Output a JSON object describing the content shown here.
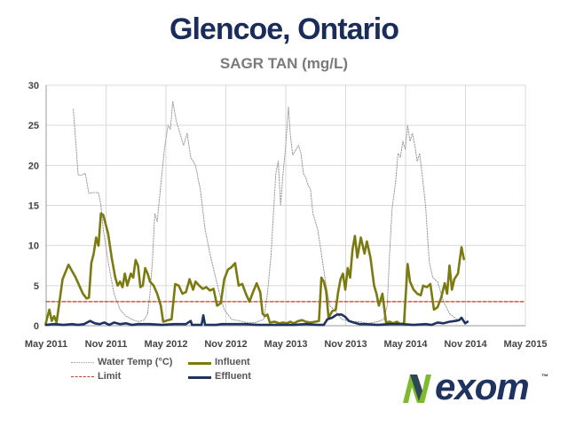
{
  "header": {
    "title": "Glencoe, Ontario",
    "subtitle": "SAGR TAN (mg/L)"
  },
  "colors": {
    "title": "#1a2d5a",
    "subtitle": "#7a7a7a",
    "water_temp": "#9a9a9a",
    "influent": "#7b7a10",
    "limit": "#c0392b",
    "effluent": "#1f3360",
    "grid": "#d9d9d9",
    "logo_green": "#7dbb2a",
    "logo_navy": "#1f3360"
  },
  "logo": {
    "text": "exom",
    "mark": "N",
    "tm": "™"
  },
  "chart_data": {
    "type": "line",
    "title": "",
    "xlabel": "",
    "ylabel": "",
    "ylim": [
      0,
      30
    ],
    "xlim": [
      2011.333,
      2015.333
    ],
    "grid": true,
    "legend_position": "bottom-center",
    "y_ticks": [
      0,
      5,
      10,
      15,
      20,
      25,
      30
    ],
    "x_ticks": [
      {
        "label": "May 2011",
        "x": 2011.333
      },
      {
        "label": "Nov 2011",
        "x": 2011.833
      },
      {
        "label": "May 2012",
        "x": 2012.333
      },
      {
        "label": "Nov 2012",
        "x": 2012.833
      },
      {
        "label": "May 2013",
        "x": 2013.333
      },
      {
        "label": "Nov 2013",
        "x": 2013.833
      },
      {
        "label": "May 2014",
        "x": 2014.333
      },
      {
        "label": "Nov 2014",
        "x": 2014.833
      },
      {
        "label": "May 2015",
        "x": 2015.333
      }
    ],
    "series": [
      {
        "name": "Water Temp (°C)",
        "style": "dotted",
        "points": [
          [
            2011.56,
            27
          ],
          [
            2011.58,
            23
          ],
          [
            2011.6,
            18.8
          ],
          [
            2011.63,
            18.8
          ],
          [
            2011.66,
            19
          ],
          [
            2011.69,
            16.5
          ],
          [
            2011.72,
            16.6
          ],
          [
            2011.77,
            16.6
          ],
          [
            2011.79,
            15
          ],
          [
            2011.81,
            12
          ],
          [
            2011.85,
            8
          ],
          [
            2011.9,
            4
          ],
          [
            2011.95,
            2
          ],
          [
            2012.0,
            1.2
          ],
          [
            2012.05,
            0.8
          ],
          [
            2012.1,
            0.5
          ],
          [
            2012.15,
            0.7
          ],
          [
            2012.18,
            1.5
          ],
          [
            2012.2,
            4
          ],
          [
            2012.22,
            8
          ],
          [
            2012.24,
            14
          ],
          [
            2012.26,
            13
          ],
          [
            2012.28,
            16
          ],
          [
            2012.3,
            19
          ],
          [
            2012.32,
            22
          ],
          [
            2012.35,
            25
          ],
          [
            2012.37,
            24.5
          ],
          [
            2012.39,
            28
          ],
          [
            2012.42,
            25.5
          ],
          [
            2012.45,
            24
          ],
          [
            2012.48,
            22.5
          ],
          [
            2012.51,
            24
          ],
          [
            2012.54,
            21
          ],
          [
            2012.58,
            20
          ],
          [
            2012.62,
            17
          ],
          [
            2012.66,
            12
          ],
          [
            2012.7,
            9
          ],
          [
            2012.74,
            6.5
          ],
          [
            2012.78,
            4
          ],
          [
            2012.82,
            2
          ],
          [
            2012.88,
            0.8
          ],
          [
            2012.95,
            0.6
          ],
          [
            2013.0,
            0.4
          ],
          [
            2013.08,
            0.4
          ],
          [
            2013.15,
            0.8
          ],
          [
            2013.18,
            4
          ],
          [
            2013.21,
            8.8
          ],
          [
            2013.23,
            14
          ],
          [
            2013.25,
            19
          ],
          [
            2013.27,
            20.5
          ],
          [
            2013.29,
            15
          ],
          [
            2013.31,
            19
          ],
          [
            2013.33,
            22
          ],
          [
            2013.355,
            27.3
          ],
          [
            2013.37,
            24
          ],
          [
            2013.39,
            21.3
          ],
          [
            2013.42,
            22
          ],
          [
            2013.44,
            22.5
          ],
          [
            2013.46,
            21.5
          ],
          [
            2013.48,
            19
          ],
          [
            2013.5,
            18.5
          ],
          [
            2013.52,
            17.5
          ],
          [
            2013.54,
            17
          ],
          [
            2013.56,
            14
          ],
          [
            2013.6,
            12
          ],
          [
            2013.63,
            9
          ],
          [
            2013.66,
            6
          ],
          [
            2013.7,
            2.5
          ],
          [
            2013.75,
            1.8
          ],
          [
            2013.8,
            0.8
          ],
          [
            2013.88,
            0.5
          ],
          [
            2013.95,
            0.5
          ],
          [
            2014.02,
            0.3
          ],
          [
            2014.1,
            0.5
          ],
          [
            2014.15,
            0.8
          ],
          [
            2014.18,
            2.5
          ],
          [
            2014.2,
            9
          ],
          [
            2014.22,
            14.5
          ],
          [
            2014.25,
            18
          ],
          [
            2014.27,
            21.5
          ],
          [
            2014.29,
            21
          ],
          [
            2014.31,
            23
          ],
          [
            2014.33,
            22
          ],
          [
            2014.35,
            25
          ],
          [
            2014.37,
            23
          ],
          [
            2014.39,
            24
          ],
          [
            2014.41,
            22.5
          ],
          [
            2014.43,
            20.5
          ],
          [
            2014.45,
            21.5
          ],
          [
            2014.47,
            19
          ],
          [
            2014.5,
            15
          ],
          [
            2014.53,
            8
          ],
          [
            2014.56,
            6
          ],
          [
            2014.6,
            5.5
          ],
          [
            2014.65,
            3
          ],
          [
            2014.7,
            1.5
          ],
          [
            2014.76,
            0.8
          ]
        ]
      },
      {
        "name": "Influent",
        "style": "solid",
        "points": [
          [
            2011.33,
            0.3
          ],
          [
            2011.36,
            2
          ],
          [
            2011.38,
            0.6
          ],
          [
            2011.4,
            1.2
          ],
          [
            2011.42,
            0.4
          ],
          [
            2011.44,
            2.5
          ],
          [
            2011.47,
            5.8
          ],
          [
            2011.52,
            7.6
          ],
          [
            2011.58,
            6
          ],
          [
            2011.64,
            4
          ],
          [
            2011.67,
            3.4
          ],
          [
            2011.69,
            3.5
          ],
          [
            2011.71,
            7.8
          ],
          [
            2011.73,
            9
          ],
          [
            2011.75,
            11
          ],
          [
            2011.77,
            10
          ],
          [
            2011.79,
            14
          ],
          [
            2011.81,
            13.8
          ],
          [
            2011.85,
            11.5
          ],
          [
            2011.88,
            8.5
          ],
          [
            2011.91,
            6
          ],
          [
            2011.93,
            5
          ],
          [
            2011.95,
            5.5
          ],
          [
            2011.97,
            4.8
          ],
          [
            2011.99,
            6.5
          ],
          [
            2012.01,
            5
          ],
          [
            2012.04,
            6.5
          ],
          [
            2012.06,
            6
          ],
          [
            2012.08,
            8.2
          ],
          [
            2012.1,
            7.5
          ],
          [
            2012.12,
            4.8
          ],
          [
            2012.14,
            5
          ],
          [
            2012.16,
            7.2
          ],
          [
            2012.18,
            6.5
          ],
          [
            2012.2,
            5.5
          ],
          [
            2012.23,
            5
          ],
          [
            2012.26,
            4
          ],
          [
            2012.29,
            2.5
          ],
          [
            2012.31,
            0.5
          ],
          [
            2012.35,
            0.7
          ],
          [
            2012.38,
            0.8
          ],
          [
            2012.41,
            5.2
          ],
          [
            2012.44,
            5
          ],
          [
            2012.47,
            4
          ],
          [
            2012.5,
            4.2
          ],
          [
            2012.53,
            5.8
          ],
          [
            2012.56,
            4.5
          ],
          [
            2012.58,
            5.5
          ],
          [
            2012.61,
            5
          ],
          [
            2012.64,
            4.6
          ],
          [
            2012.67,
            4.8
          ],
          [
            2012.7,
            4.4
          ],
          [
            2012.73,
            4.6
          ],
          [
            2012.76,
            2.5
          ],
          [
            2012.79,
            2.8
          ],
          [
            2012.82,
            5.8
          ],
          [
            2012.85,
            7
          ],
          [
            2012.88,
            7.3
          ],
          [
            2012.91,
            7.8
          ],
          [
            2012.94,
            5
          ],
          [
            2012.97,
            5.2
          ],
          [
            2013.0,
            4
          ],
          [
            2013.03,
            3
          ],
          [
            2013.06,
            4.2
          ],
          [
            2013.09,
            5.3
          ],
          [
            2013.12,
            4.2
          ],
          [
            2013.14,
            1.5
          ],
          [
            2013.16,
            1.2
          ],
          [
            2013.18,
            1.4
          ],
          [
            2013.2,
            0.4
          ],
          [
            2013.24,
            0.5
          ],
          [
            2013.28,
            0.3
          ],
          [
            2013.31,
            0.4
          ],
          [
            2013.34,
            0.3
          ],
          [
            2013.37,
            0.5
          ],
          [
            2013.4,
            0.3
          ],
          [
            2013.44,
            0.6
          ],
          [
            2013.47,
            0.7
          ],
          [
            2013.5,
            0.5
          ],
          [
            2013.54,
            0.4
          ],
          [
            2013.58,
            0.5
          ],
          [
            2013.61,
            0.6
          ],
          [
            2013.63,
            6
          ],
          [
            2013.65,
            5.5
          ],
          [
            2013.67,
            4.3
          ],
          [
            2013.69,
            1
          ],
          [
            2013.72,
            1.8
          ],
          [
            2013.75,
            2
          ],
          [
            2013.77,
            4.2
          ],
          [
            2013.79,
            5.8
          ],
          [
            2013.81,
            6.5
          ],
          [
            2013.83,
            4.5
          ],
          [
            2013.85,
            7.2
          ],
          [
            2013.87,
            6
          ],
          [
            2013.89,
            9.5
          ],
          [
            2013.91,
            11.2
          ],
          [
            2013.93,
            8.5
          ],
          [
            2013.96,
            11
          ],
          [
            2013.99,
            9
          ],
          [
            2014.01,
            10.5
          ],
          [
            2014.04,
            8.5
          ],
          [
            2014.07,
            5
          ],
          [
            2014.09,
            4
          ],
          [
            2014.11,
            2.5
          ],
          [
            2014.14,
            4
          ],
          [
            2014.17,
            0.4
          ],
          [
            2014.2,
            0.5
          ],
          [
            2014.23,
            0.3
          ],
          [
            2014.26,
            0.5
          ],
          [
            2014.29,
            0.2
          ],
          [
            2014.32,
            0.3
          ],
          [
            2014.35,
            7.7
          ],
          [
            2014.37,
            5.5
          ],
          [
            2014.4,
            4.5
          ],
          [
            2014.43,
            4
          ],
          [
            2014.46,
            3.8
          ],
          [
            2014.48,
            5
          ],
          [
            2014.51,
            4.8
          ],
          [
            2014.54,
            5.2
          ],
          [
            2014.57,
            2
          ],
          [
            2014.6,
            2.3
          ],
          [
            2014.63,
            3.5
          ],
          [
            2014.66,
            5.3
          ],
          [
            2014.68,
            4
          ],
          [
            2014.7,
            7.5
          ],
          [
            2014.72,
            4.5
          ],
          [
            2014.74,
            5.8
          ],
          [
            2014.77,
            6.5
          ],
          [
            2014.8,
            9.8
          ],
          [
            2014.82,
            8.3
          ]
        ]
      },
      {
        "name": "Limit",
        "style": "dashed",
        "points": [
          [
            2011.333,
            3
          ],
          [
            2015.333,
            3
          ]
        ]
      },
      {
        "name": "Effluent",
        "style": "solid",
        "points": [
          [
            2011.33,
            0.1
          ],
          [
            2011.4,
            0.2
          ],
          [
            2011.48,
            0.1
          ],
          [
            2011.55,
            0.2
          ],
          [
            2011.6,
            0.1
          ],
          [
            2011.65,
            0.2
          ],
          [
            2011.7,
            0.6
          ],
          [
            2011.74,
            0.3
          ],
          [
            2011.78,
            0.2
          ],
          [
            2011.82,
            0.4
          ],
          [
            2011.86,
            0.1
          ],
          [
            2011.9,
            0.4
          ],
          [
            2011.95,
            0.2
          ],
          [
            2012.0,
            0.3
          ],
          [
            2012.05,
            0.1
          ],
          [
            2012.1,
            0.2
          ],
          [
            2012.2,
            0.2
          ],
          [
            2012.3,
            0.1
          ],
          [
            2012.4,
            0.2
          ],
          [
            2012.5,
            0.2
          ],
          [
            2012.54,
            0.6
          ],
          [
            2012.55,
            0.1
          ],
          [
            2012.63,
            0.1
          ],
          [
            2012.645,
            1.3
          ],
          [
            2012.66,
            0.1
          ],
          [
            2012.75,
            0.1
          ],
          [
            2012.8,
            0.2
          ],
          [
            2012.9,
            0.2
          ],
          [
            2013.0,
            0.2
          ],
          [
            2013.1,
            0.1
          ],
          [
            2013.2,
            0.1
          ],
          [
            2013.3,
            0.1
          ],
          [
            2013.4,
            0.1
          ],
          [
            2013.5,
            0.2
          ],
          [
            2013.6,
            0.1
          ],
          [
            2013.65,
            0.1
          ],
          [
            2013.68,
            0.8
          ],
          [
            2013.72,
            1.0
          ],
          [
            2013.76,
            1.4
          ],
          [
            2013.8,
            1.4
          ],
          [
            2013.83,
            1.1
          ],
          [
            2013.86,
            0.6
          ],
          [
            2013.9,
            0.4
          ],
          [
            2013.95,
            0.2
          ],
          [
            2014.0,
            0.2
          ],
          [
            2014.1,
            0.1
          ],
          [
            2014.2,
            0.2
          ],
          [
            2014.3,
            0.2
          ],
          [
            2014.4,
            0.1
          ],
          [
            2014.5,
            0.2
          ],
          [
            2014.55,
            0.1
          ],
          [
            2014.6,
            0.4
          ],
          [
            2014.65,
            0.3
          ],
          [
            2014.7,
            0.5
          ],
          [
            2014.75,
            0.6
          ],
          [
            2014.78,
            0.7
          ],
          [
            2014.8,
            1.0
          ],
          [
            2014.83,
            0.3
          ],
          [
            2014.85,
            0.5
          ]
        ]
      }
    ]
  }
}
